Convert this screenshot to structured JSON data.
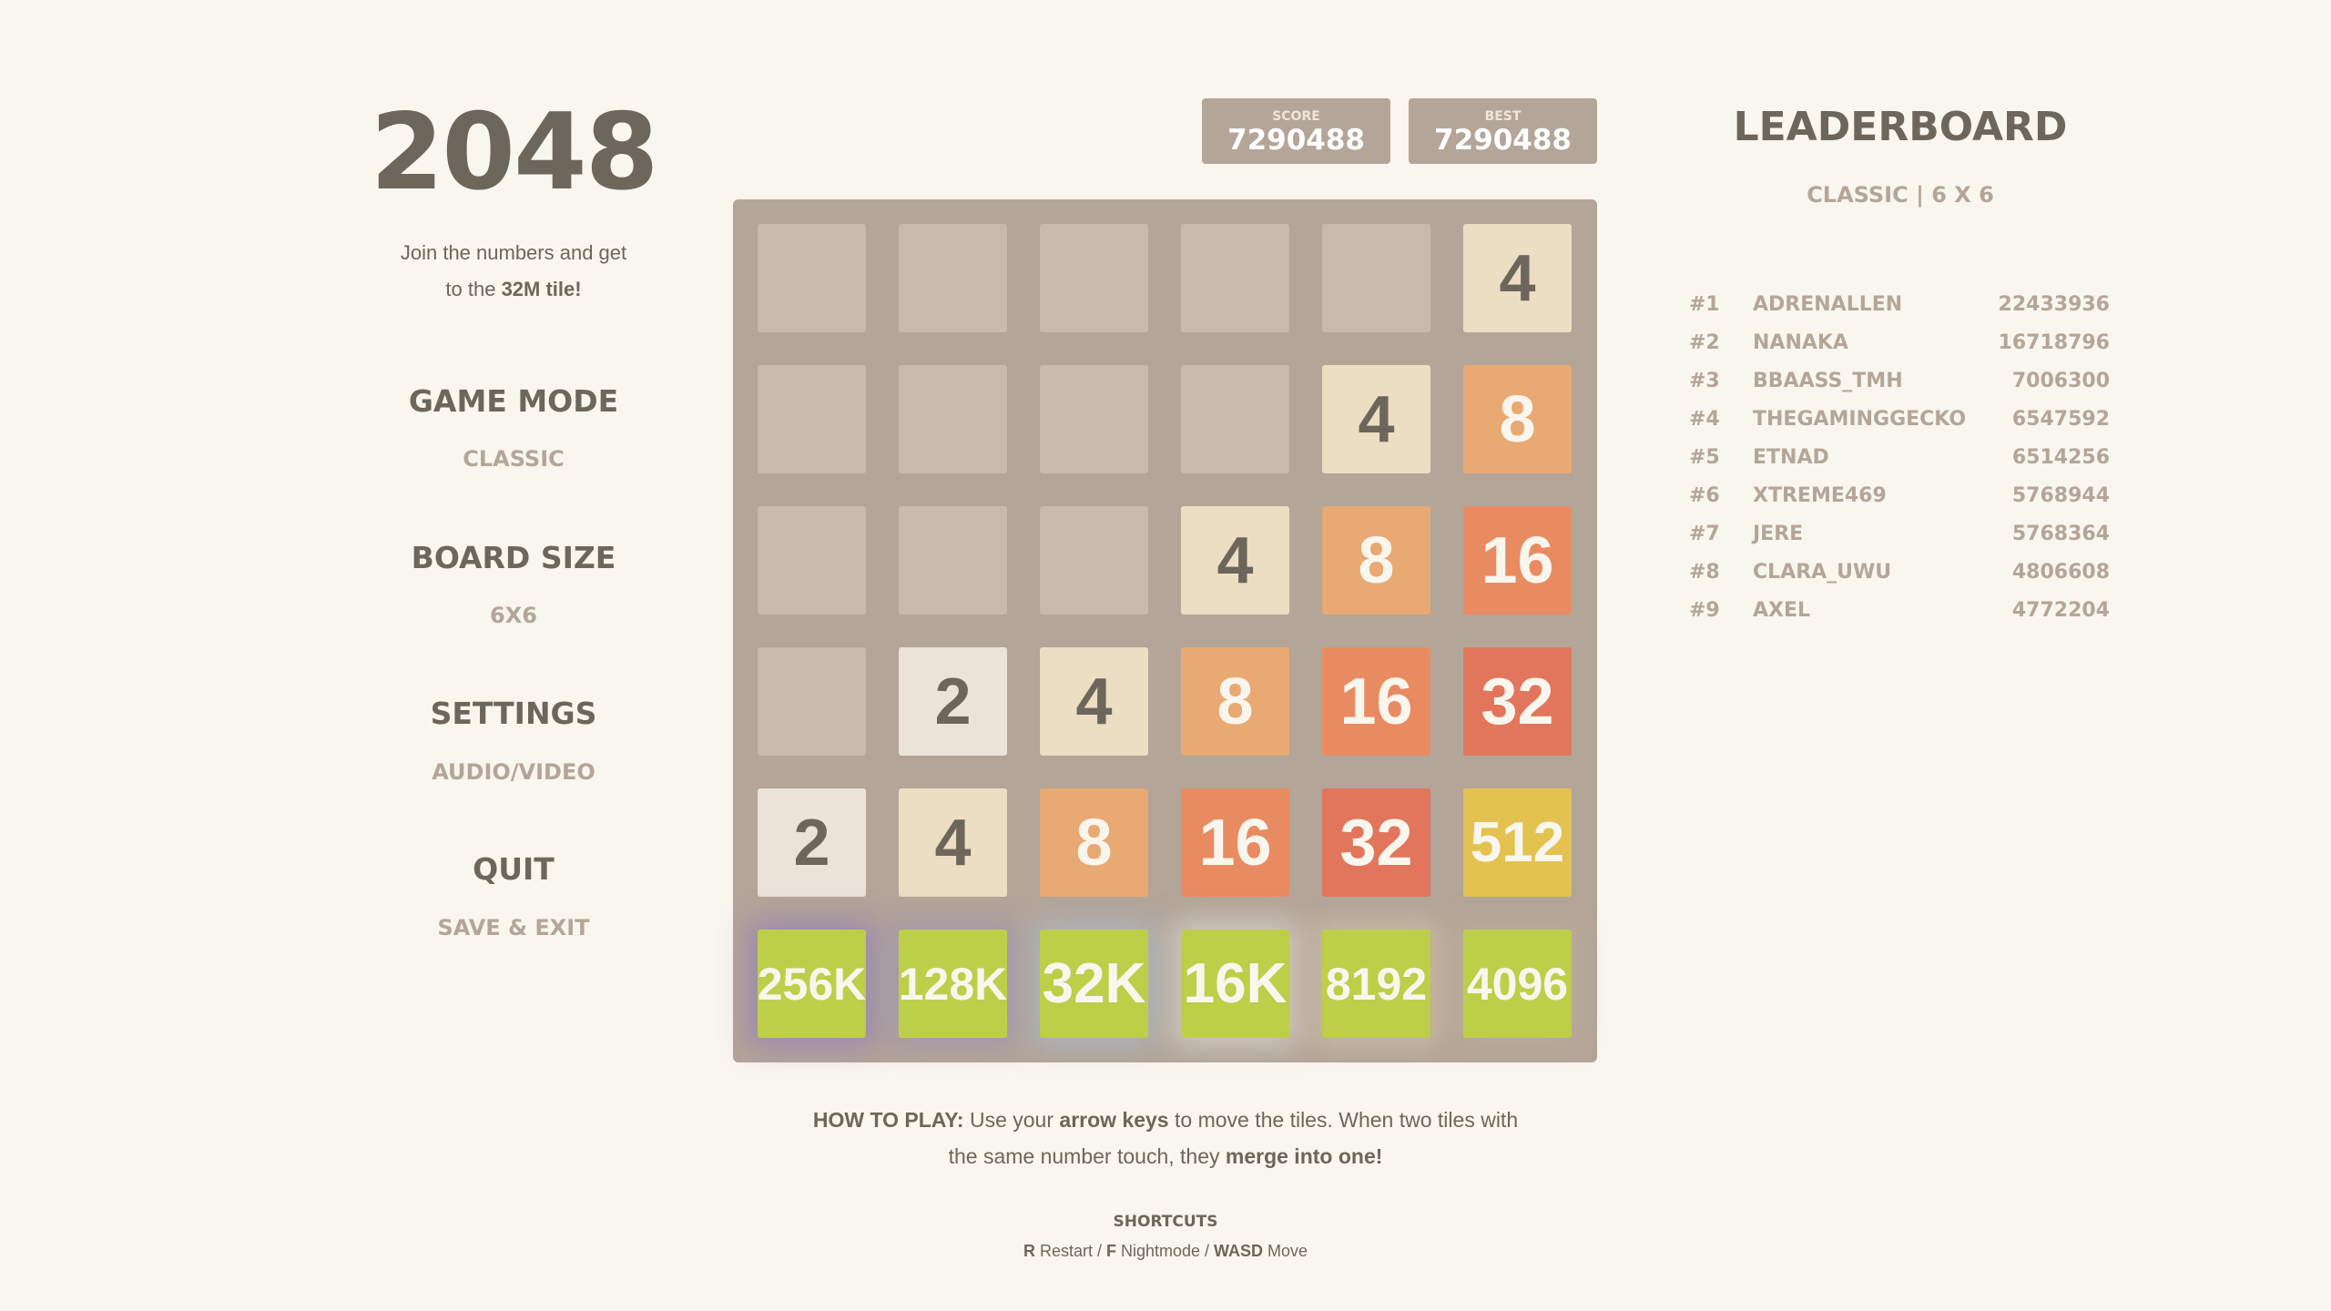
{
  "title": "2048",
  "subtitle": {
    "line1": "Join the numbers and get",
    "line2_pre": "to the ",
    "line2_bold": "32M tile!"
  },
  "menu": [
    {
      "heading": "GAME MODE",
      "value": "CLASSIC"
    },
    {
      "heading": "BOARD SIZE",
      "value": "6X6"
    },
    {
      "heading": "SETTINGS",
      "value": "AUDIO/VIDEO"
    },
    {
      "heading": "QUIT",
      "value": "SAVE & EXIT"
    }
  ],
  "score": {
    "label": "SCORE",
    "value": "7290488"
  },
  "best": {
    "label": "BEST",
    "value": "7290488"
  },
  "board": {
    "size": 6,
    "rows": [
      [
        "",
        "",
        "",
        "",
        "",
        "4"
      ],
      [
        "",
        "",
        "",
        "",
        "4",
        "8"
      ],
      [
        "",
        "",
        "",
        "4",
        "8",
        "16"
      ],
      [
        "",
        "2",
        "4",
        "8",
        "16",
        "32"
      ],
      [
        "2",
        "4",
        "8",
        "16",
        "32",
        "512"
      ],
      [
        "256K",
        "128K",
        "32K",
        "16K",
        "8192",
        "4096"
      ]
    ],
    "colors": {
      "empty": "#c6baad",
      "2": "#ebe3d8",
      "4": "#ecdec3",
      "8": "#e9a973",
      "16": "#e98b61",
      "32": "#e2765c",
      "512": "#e4c250",
      "high": "#bdcf48",
      "board": "#b3a598",
      "dark_text": "#6c665b",
      "light_text": "#f9f6ee"
    }
  },
  "leaderboard": {
    "title": "LEADERBOARD",
    "subtitle": "CLASSIC | 6 X 6",
    "entries": [
      {
        "rank": "#1",
        "name": "ADRENALLEN",
        "score": "22433936"
      },
      {
        "rank": "#2",
        "name": "NANAKA",
        "score": "16718796"
      },
      {
        "rank": "#3",
        "name": "BBAASS_TMH",
        "score": "7006300"
      },
      {
        "rank": "#4",
        "name": "THEGAMINGGECKO",
        "score": "6547592"
      },
      {
        "rank": "#5",
        "name": "ETNAD",
        "score": "6514256"
      },
      {
        "rank": "#6",
        "name": "XTREME469",
        "score": "5768944"
      },
      {
        "rank": "#7",
        "name": "JERE",
        "score": "5768364"
      },
      {
        "rank": "#8",
        "name": "CLARA_UWU",
        "score": "4806608"
      },
      {
        "rank": "#9",
        "name": "AXEL",
        "score": "4772204"
      }
    ]
  },
  "howto": {
    "label": "HOW TO PLAY:",
    "t1": " Use your ",
    "b1": "arrow keys",
    "t2": " to move the tiles. When two tiles with",
    "t3": "the same number touch, they ",
    "b2": "merge into one!"
  },
  "shortcuts": {
    "heading": "SHORTCUTS",
    "k1": "R",
    "l1": " Restart / ",
    "k2": "F",
    "l2": " Nightmode / ",
    "k3": "WASD",
    "l3": " Move"
  }
}
